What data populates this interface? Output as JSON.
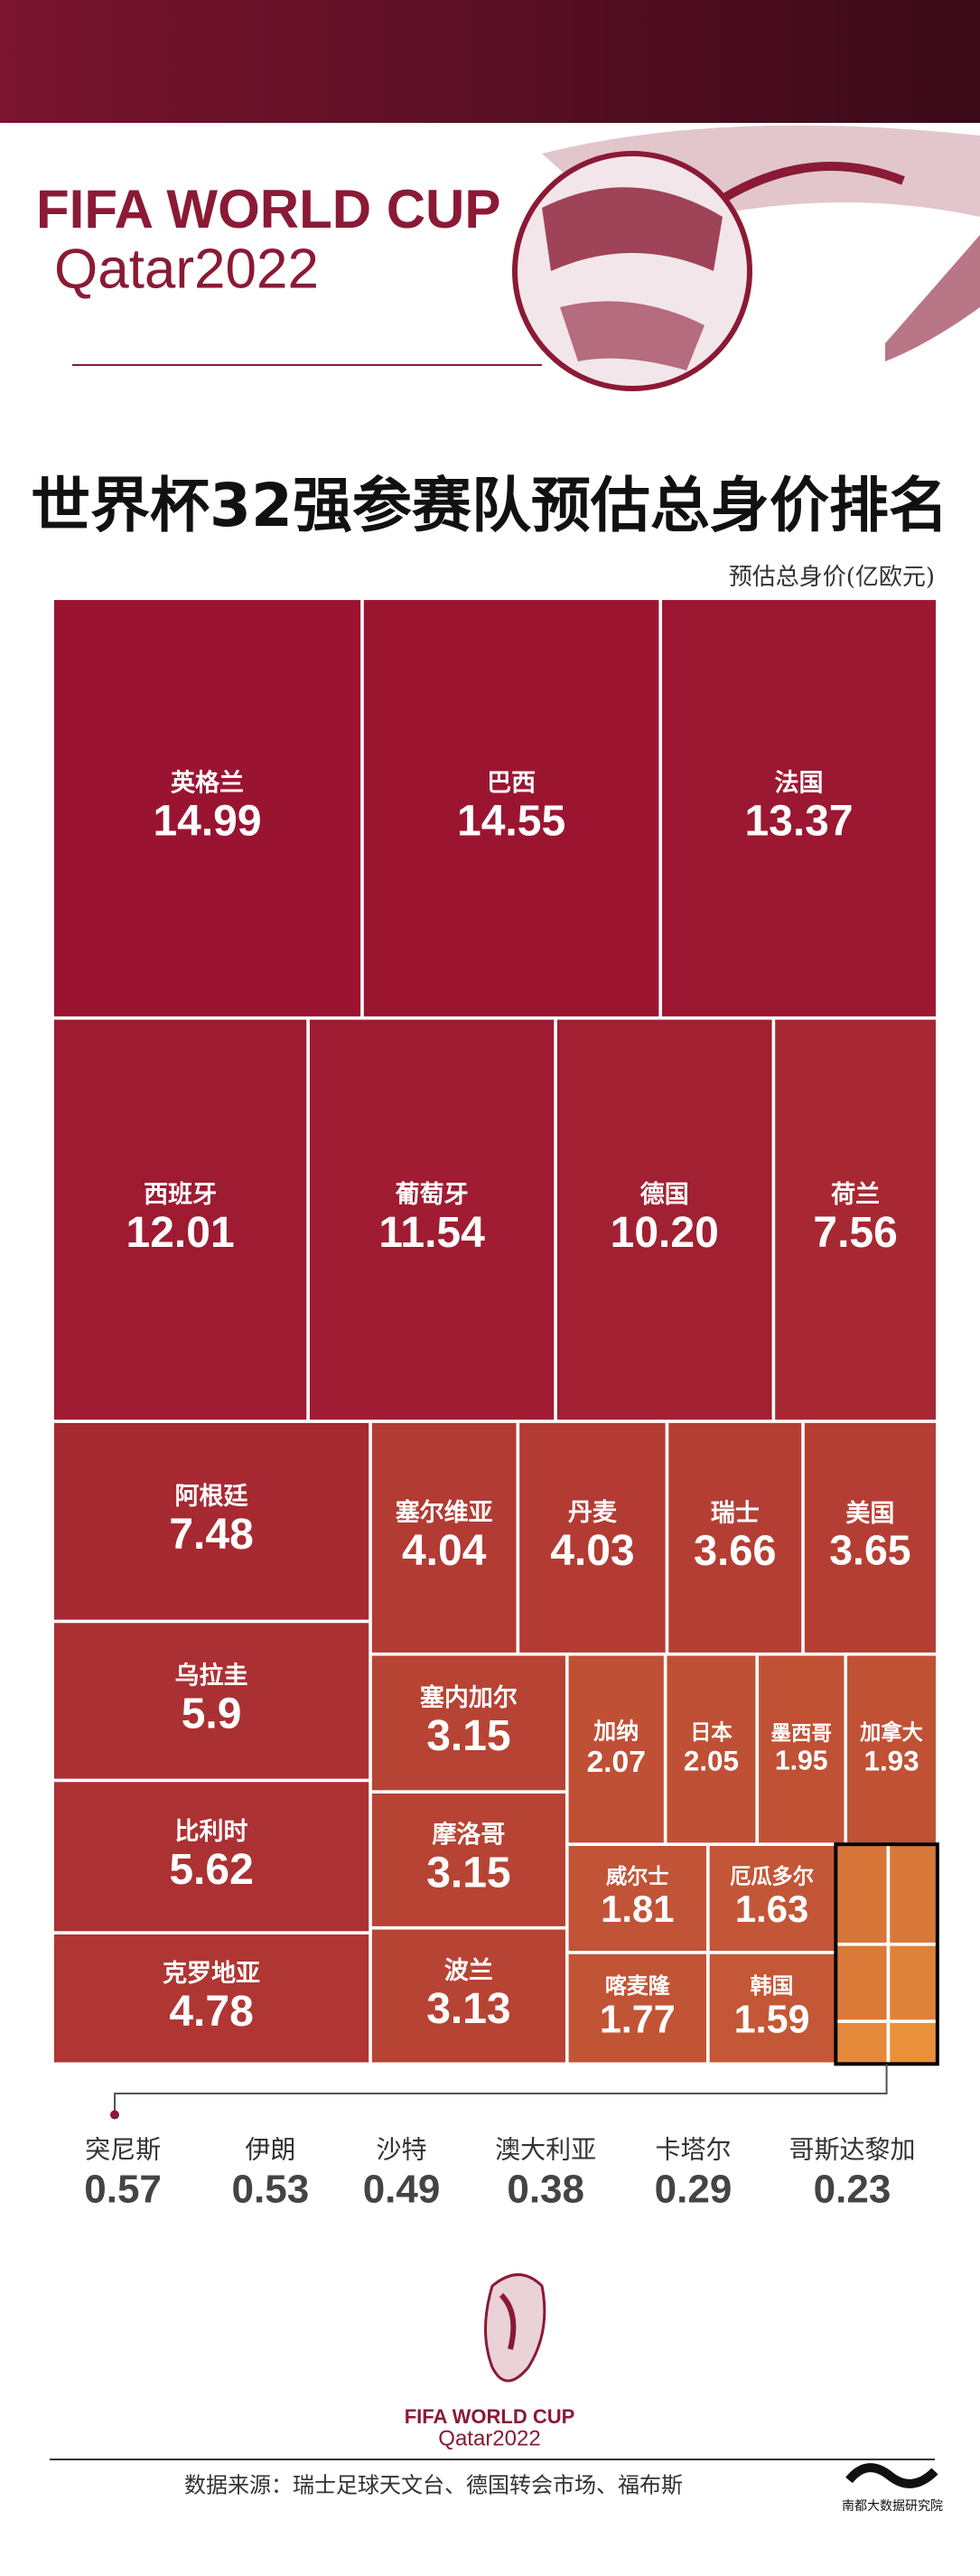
{
  "header": {
    "brand": "FIFA WORLD CUP",
    "edition": "Qatar2022"
  },
  "chart_data": {
    "type": "treemap",
    "title": "世界杯32强参赛队预估总身价排名",
    "unit_label": "预估总身价(亿欧元)",
    "categories": [
      "英格兰",
      "巴西",
      "法国",
      "西班牙",
      "葡萄牙",
      "德国",
      "荷兰",
      "阿根廷",
      "乌拉圭",
      "比利时",
      "克罗地亚",
      "塞尔维亚",
      "丹麦",
      "瑞士",
      "美国",
      "塞内加尔",
      "摩洛哥",
      "波兰",
      "加纳",
      "日本",
      "墨西哥",
      "加拿大",
      "威尔士",
      "厄瓜多尔",
      "喀麦隆",
      "韩国",
      "突尼斯",
      "伊朗",
      "沙特",
      "澳大利亚",
      "卡塔尔",
      "哥斯达黎加"
    ],
    "values": [
      14.99,
      14.55,
      13.37,
      12.01,
      11.54,
      10.2,
      7.56,
      7.48,
      5.9,
      5.62,
      4.78,
      4.04,
      4.03,
      3.66,
      3.65,
      3.15,
      3.15,
      3.13,
      2.07,
      2.05,
      1.95,
      1.93,
      1.81,
      1.63,
      1.77,
      1.59,
      0.57,
      0.53,
      0.49,
      0.38,
      0.29,
      0.23
    ],
    "value_labels": [
      "14.99",
      "14.55",
      "13.37",
      "12.01",
      "11.54",
      "10.20",
      "7.56",
      "7.48",
      "5.9",
      "5.62",
      "4.78",
      "4.04",
      "4.03",
      "3.66",
      "3.65",
      "3.15",
      "3.15",
      "3.13",
      "2.07",
      "2.05",
      "1.95",
      "1.93",
      "1.81",
      "1.63",
      "1.77",
      "1.59",
      "0.57",
      "0.53",
      "0.49",
      "0.38",
      "0.29",
      "0.23"
    ],
    "color_range": [
      "#e8913a",
      "#9a1431"
    ]
  },
  "footer": {
    "brand": "FIFA WORLD CUP",
    "edition": "Qatar2022",
    "source": "数据来源：瑞士足球天文台、德国转会市场、福布斯",
    "publisher": "南都大数据研究院"
  }
}
